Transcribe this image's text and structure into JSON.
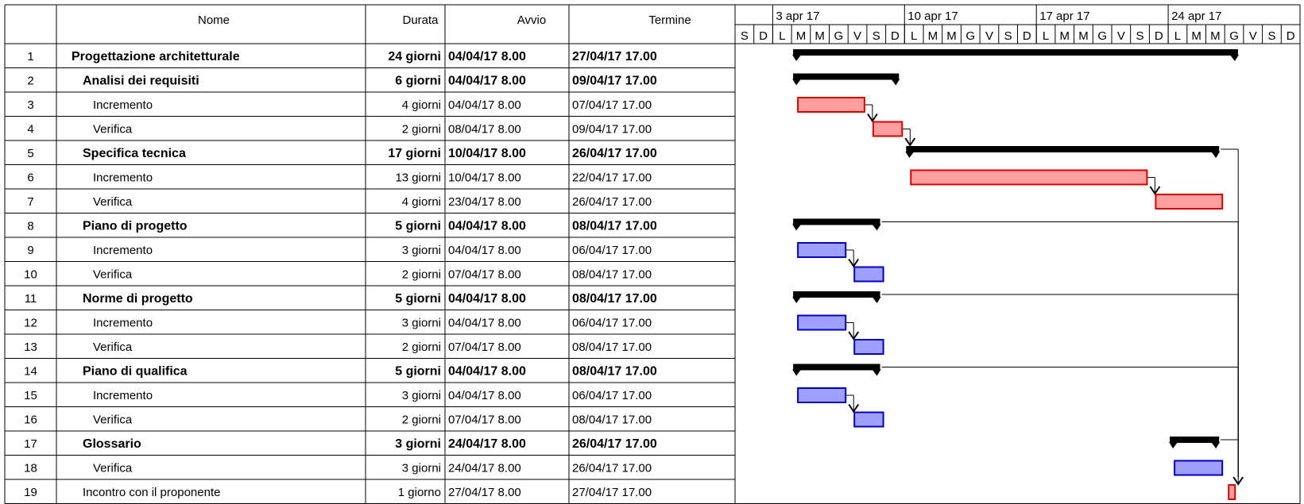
{
  "headers": {
    "name": "Nome",
    "duration": "Durata",
    "start": "Avvio",
    "end": "Termine"
  },
  "colors": {
    "summary_bar": "#000000",
    "task_red_fill": "#ff9f9f",
    "task_red_border": "#d50000",
    "task_blue_fill": "#9f9ffd",
    "task_blue_border": "#0000b8",
    "grid": "#000000"
  },
  "chart_data": {
    "type": "gantt",
    "timescale": {
      "weeks": [
        "3 apr 17",
        "10 apr 17",
        "17 apr 17",
        "24 apr 17"
      ],
      "day_letters": [
        "S",
        "D",
        "L",
        "M",
        "M",
        "G",
        "V",
        "S",
        "D",
        "L",
        "M",
        "M",
        "G",
        "V",
        "S",
        "D",
        "L",
        "M",
        "M",
        "G",
        "V",
        "S",
        "D",
        "L",
        "M",
        "M",
        "G",
        "V",
        "S",
        "D"
      ],
      "first_day": "01/04/17",
      "last_day": "30/04/17"
    },
    "tasks": [
      {
        "id": "1",
        "name": "Progettazione architetturale",
        "duration": "24 giorni",
        "start": "04/04/17 8.00",
        "end": "27/04/17 17.00",
        "level": 0,
        "summary": true,
        "bar_start": "04/04/17",
        "bar_end": "27/04/17"
      },
      {
        "id": "2",
        "name": "Analisi dei requisiti",
        "duration": "6 giorni",
        "start": "04/04/17 8.00",
        "end": "09/04/17 17.00",
        "level": 1,
        "summary": true,
        "bar_start": "04/04/17",
        "bar_end": "09/04/17"
      },
      {
        "id": "3",
        "name": "Incremento",
        "duration": "4 giorni",
        "start": "04/04/17 8.00",
        "end": "07/04/17 17.00",
        "level": 2,
        "summary": false,
        "color": "red",
        "bar_start": "04/04/17",
        "bar_end": "07/04/17"
      },
      {
        "id": "4",
        "name": "Verifica",
        "duration": "2 giorni",
        "start": "08/04/17 8.00",
        "end": "09/04/17 17.00",
        "level": 2,
        "summary": false,
        "color": "red",
        "bar_start": "08/04/17",
        "bar_end": "09/04/17"
      },
      {
        "id": "5",
        "name": "Specifica tecnica",
        "duration": "17 giorni",
        "start": "10/04/17 8.00",
        "end": "26/04/17 17.00",
        "level": 1,
        "summary": true,
        "bar_start": "10/04/17",
        "bar_end": "26/04/17"
      },
      {
        "id": "6",
        "name": "Incremento",
        "duration": "13 giorni",
        "start": "10/04/17 8.00",
        "end": "22/04/17 17.00",
        "level": 2,
        "summary": false,
        "color": "red",
        "bar_start": "10/04/17",
        "bar_end": "22/04/17"
      },
      {
        "id": "7",
        "name": "Verifica",
        "duration": "4 giorni",
        "start": "23/04/17 8.00",
        "end": "26/04/17 17.00",
        "level": 2,
        "summary": false,
        "color": "red",
        "bar_start": "23/04/17",
        "bar_end": "26/04/17"
      },
      {
        "id": "8",
        "name": "Piano di progetto",
        "duration": "5 giorni",
        "start": "04/04/17 8.00",
        "end": "08/04/17 17.00",
        "level": 1,
        "summary": true,
        "bar_start": "04/04/17",
        "bar_end": "08/04/17"
      },
      {
        "id": "9",
        "name": "Incremento",
        "duration": "3 giorni",
        "start": "04/04/17 8.00",
        "end": "06/04/17 17.00",
        "level": 2,
        "summary": false,
        "color": "blue",
        "bar_start": "04/04/17",
        "bar_end": "06/04/17"
      },
      {
        "id": "10",
        "name": "Verifica",
        "duration": "2 giorni",
        "start": "07/04/17 8.00",
        "end": "08/04/17 17.00",
        "level": 2,
        "summary": false,
        "color": "blue",
        "bar_start": "07/04/17",
        "bar_end": "08/04/17"
      },
      {
        "id": "11",
        "name": "Norme di progetto",
        "duration": "5 giorni",
        "start": "04/04/17 8.00",
        "end": "08/04/17 17.00",
        "level": 1,
        "summary": true,
        "bar_start": "04/04/17",
        "bar_end": "08/04/17"
      },
      {
        "id": "12",
        "name": "Incremento",
        "duration": "3 giorni",
        "start": "04/04/17 8.00",
        "end": "06/04/17 17.00",
        "level": 2,
        "summary": false,
        "color": "blue",
        "bar_start": "04/04/17",
        "bar_end": "06/04/17"
      },
      {
        "id": "13",
        "name": "Verifica",
        "duration": "2 giorni",
        "start": "07/04/17 8.00",
        "end": "08/04/17 17.00",
        "level": 2,
        "summary": false,
        "color": "blue",
        "bar_start": "07/04/17",
        "bar_end": "08/04/17"
      },
      {
        "id": "14",
        "name": "Piano di qualifica",
        "duration": "5 giorni",
        "start": "04/04/17 8.00",
        "end": "08/04/17 17.00",
        "level": 1,
        "summary": true,
        "bar_start": "04/04/17",
        "bar_end": "08/04/17"
      },
      {
        "id": "15",
        "name": "Incremento",
        "duration": "3 giorni",
        "start": "04/04/17 8.00",
        "end": "06/04/17 17.00",
        "level": 2,
        "summary": false,
        "color": "blue",
        "bar_start": "04/04/17",
        "bar_end": "06/04/17"
      },
      {
        "id": "16",
        "name": "Verifica",
        "duration": "2 giorni",
        "start": "07/04/17 8.00",
        "end": "08/04/17 17.00",
        "level": 2,
        "summary": false,
        "color": "blue",
        "bar_start": "07/04/17",
        "bar_end": "08/04/17"
      },
      {
        "id": "17",
        "name": "Glossario",
        "duration": "3 giorni",
        "start": "24/04/17 8.00",
        "end": "26/04/17 17.00",
        "level": 1,
        "summary": true,
        "bar_start": "24/04/17",
        "bar_end": "26/04/17"
      },
      {
        "id": "18",
        "name": "Verifica",
        "duration": "3 giorni",
        "start": "24/04/17 8.00",
        "end": "26/04/17 17.00",
        "level": 2,
        "summary": false,
        "color": "blue",
        "bar_start": "24/04/17",
        "bar_end": "26/04/17"
      },
      {
        "id": "19",
        "name": "Incontro con il proponente",
        "duration": "1 giorno",
        "start": "27/04/17 8.00",
        "end": "27/04/17 17.00",
        "level": 1,
        "summary": false,
        "color": "red",
        "plain": true,
        "bar_start": "27/04/17",
        "bar_end": "27/04/17"
      }
    ],
    "links": [
      {
        "from": "3",
        "to": "4"
      },
      {
        "from": "4",
        "to": "5"
      },
      {
        "from": "6",
        "to": "7"
      },
      {
        "from": "9",
        "to": "10"
      },
      {
        "from": "12",
        "to": "13"
      },
      {
        "from": "15",
        "to": "16"
      },
      {
        "from": "5",
        "to": "19"
      },
      {
        "from": "8",
        "to": "19"
      },
      {
        "from": "11",
        "to": "19"
      },
      {
        "from": "14",
        "to": "19"
      },
      {
        "from": "17",
        "to": "19"
      }
    ]
  }
}
